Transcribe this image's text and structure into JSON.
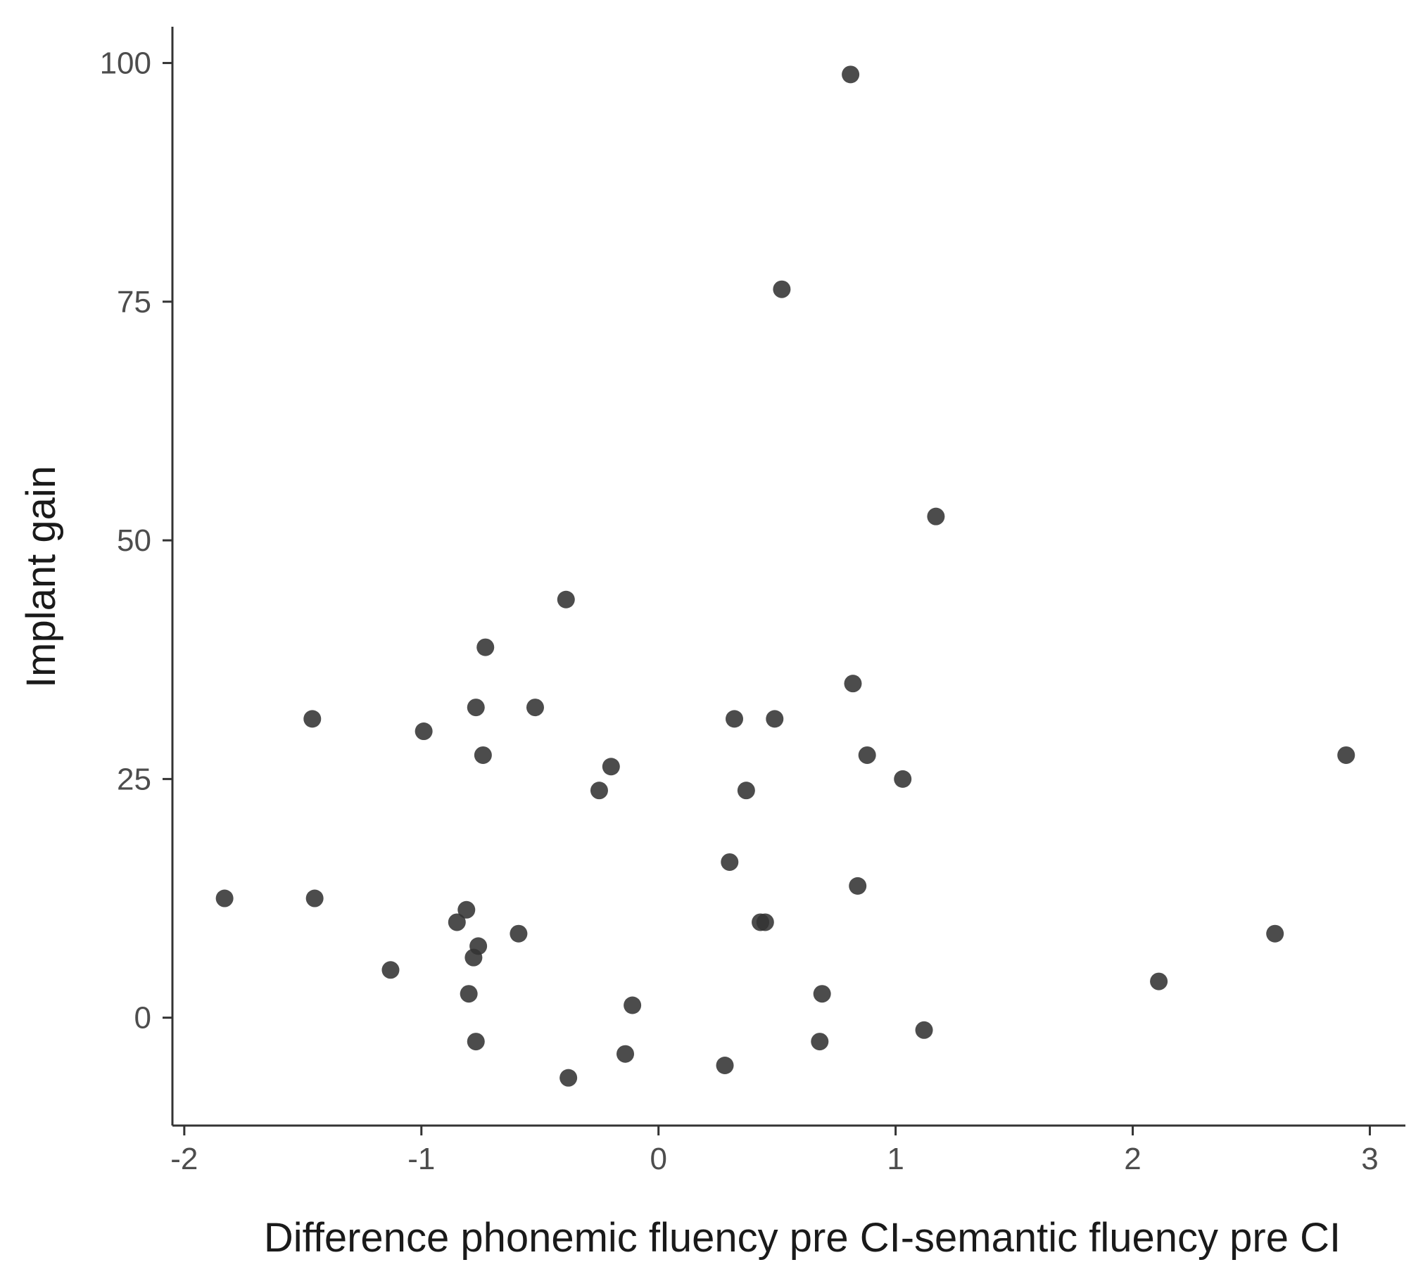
{
  "chart_data": {
    "type": "scatter",
    "title": "",
    "xlabel": "Difference phonemic fluency pre CI-semantic fluency pre CI",
    "ylabel": "Implant gain",
    "xlim": [
      -2.05,
      3.15
    ],
    "ylim": [
      -11.3,
      103.8
    ],
    "x_ticks": [
      -2,
      -1,
      0,
      1,
      2,
      3
    ],
    "x_tick_labels": [
      "-2",
      "-1",
      "0",
      "1",
      "2",
      "3"
    ],
    "y_ticks": [
      0,
      25,
      50,
      75,
      100
    ],
    "y_tick_labels": [
      "0",
      "25",
      "50",
      "75",
      "100"
    ],
    "grid": false,
    "legend": "none",
    "point_color": "#333333",
    "points": [
      {
        "x": -1.83,
        "y": 12.5
      },
      {
        "x": -1.46,
        "y": 31.3
      },
      {
        "x": -1.45,
        "y": 12.5
      },
      {
        "x": -1.13,
        "y": 5.0
      },
      {
        "x": -0.99,
        "y": 30.0
      },
      {
        "x": -0.85,
        "y": 10.0
      },
      {
        "x": -0.81,
        "y": 11.3
      },
      {
        "x": -0.8,
        "y": 2.5
      },
      {
        "x": -0.78,
        "y": 6.3
      },
      {
        "x": -0.77,
        "y": 32.5
      },
      {
        "x": -0.77,
        "y": -2.5
      },
      {
        "x": -0.76,
        "y": 7.5
      },
      {
        "x": -0.74,
        "y": 27.5
      },
      {
        "x": -0.73,
        "y": 38.8
      },
      {
        "x": -0.59,
        "y": 8.8
      },
      {
        "x": -0.52,
        "y": 32.5
      },
      {
        "x": -0.39,
        "y": 43.8
      },
      {
        "x": -0.38,
        "y": -6.3
      },
      {
        "x": -0.25,
        "y": 23.8
      },
      {
        "x": -0.2,
        "y": 26.3
      },
      {
        "x": -0.14,
        "y": -3.8
      },
      {
        "x": -0.11,
        "y": 1.3
      },
      {
        "x": 0.28,
        "y": -5.0
      },
      {
        "x": 0.3,
        "y": 16.3
      },
      {
        "x": 0.32,
        "y": 31.3
      },
      {
        "x": 0.37,
        "y": 23.8
      },
      {
        "x": 0.43,
        "y": 10.0
      },
      {
        "x": 0.45,
        "y": 10.0
      },
      {
        "x": 0.49,
        "y": 31.3
      },
      {
        "x": 0.52,
        "y": 76.3
      },
      {
        "x": 0.68,
        "y": -2.5
      },
      {
        "x": 0.69,
        "y": 2.5
      },
      {
        "x": 0.81,
        "y": 98.8
      },
      {
        "x": 0.82,
        "y": 35.0
      },
      {
        "x": 0.84,
        "y": 13.8
      },
      {
        "x": 0.88,
        "y": 27.5
      },
      {
        "x": 1.03,
        "y": 25.0
      },
      {
        "x": 1.12,
        "y": -1.3
      },
      {
        "x": 1.17,
        "y": 52.5
      },
      {
        "x": 2.11,
        "y": 3.8
      },
      {
        "x": 2.6,
        "y": 8.8
      },
      {
        "x": 2.9,
        "y": 27.5
      }
    ]
  }
}
